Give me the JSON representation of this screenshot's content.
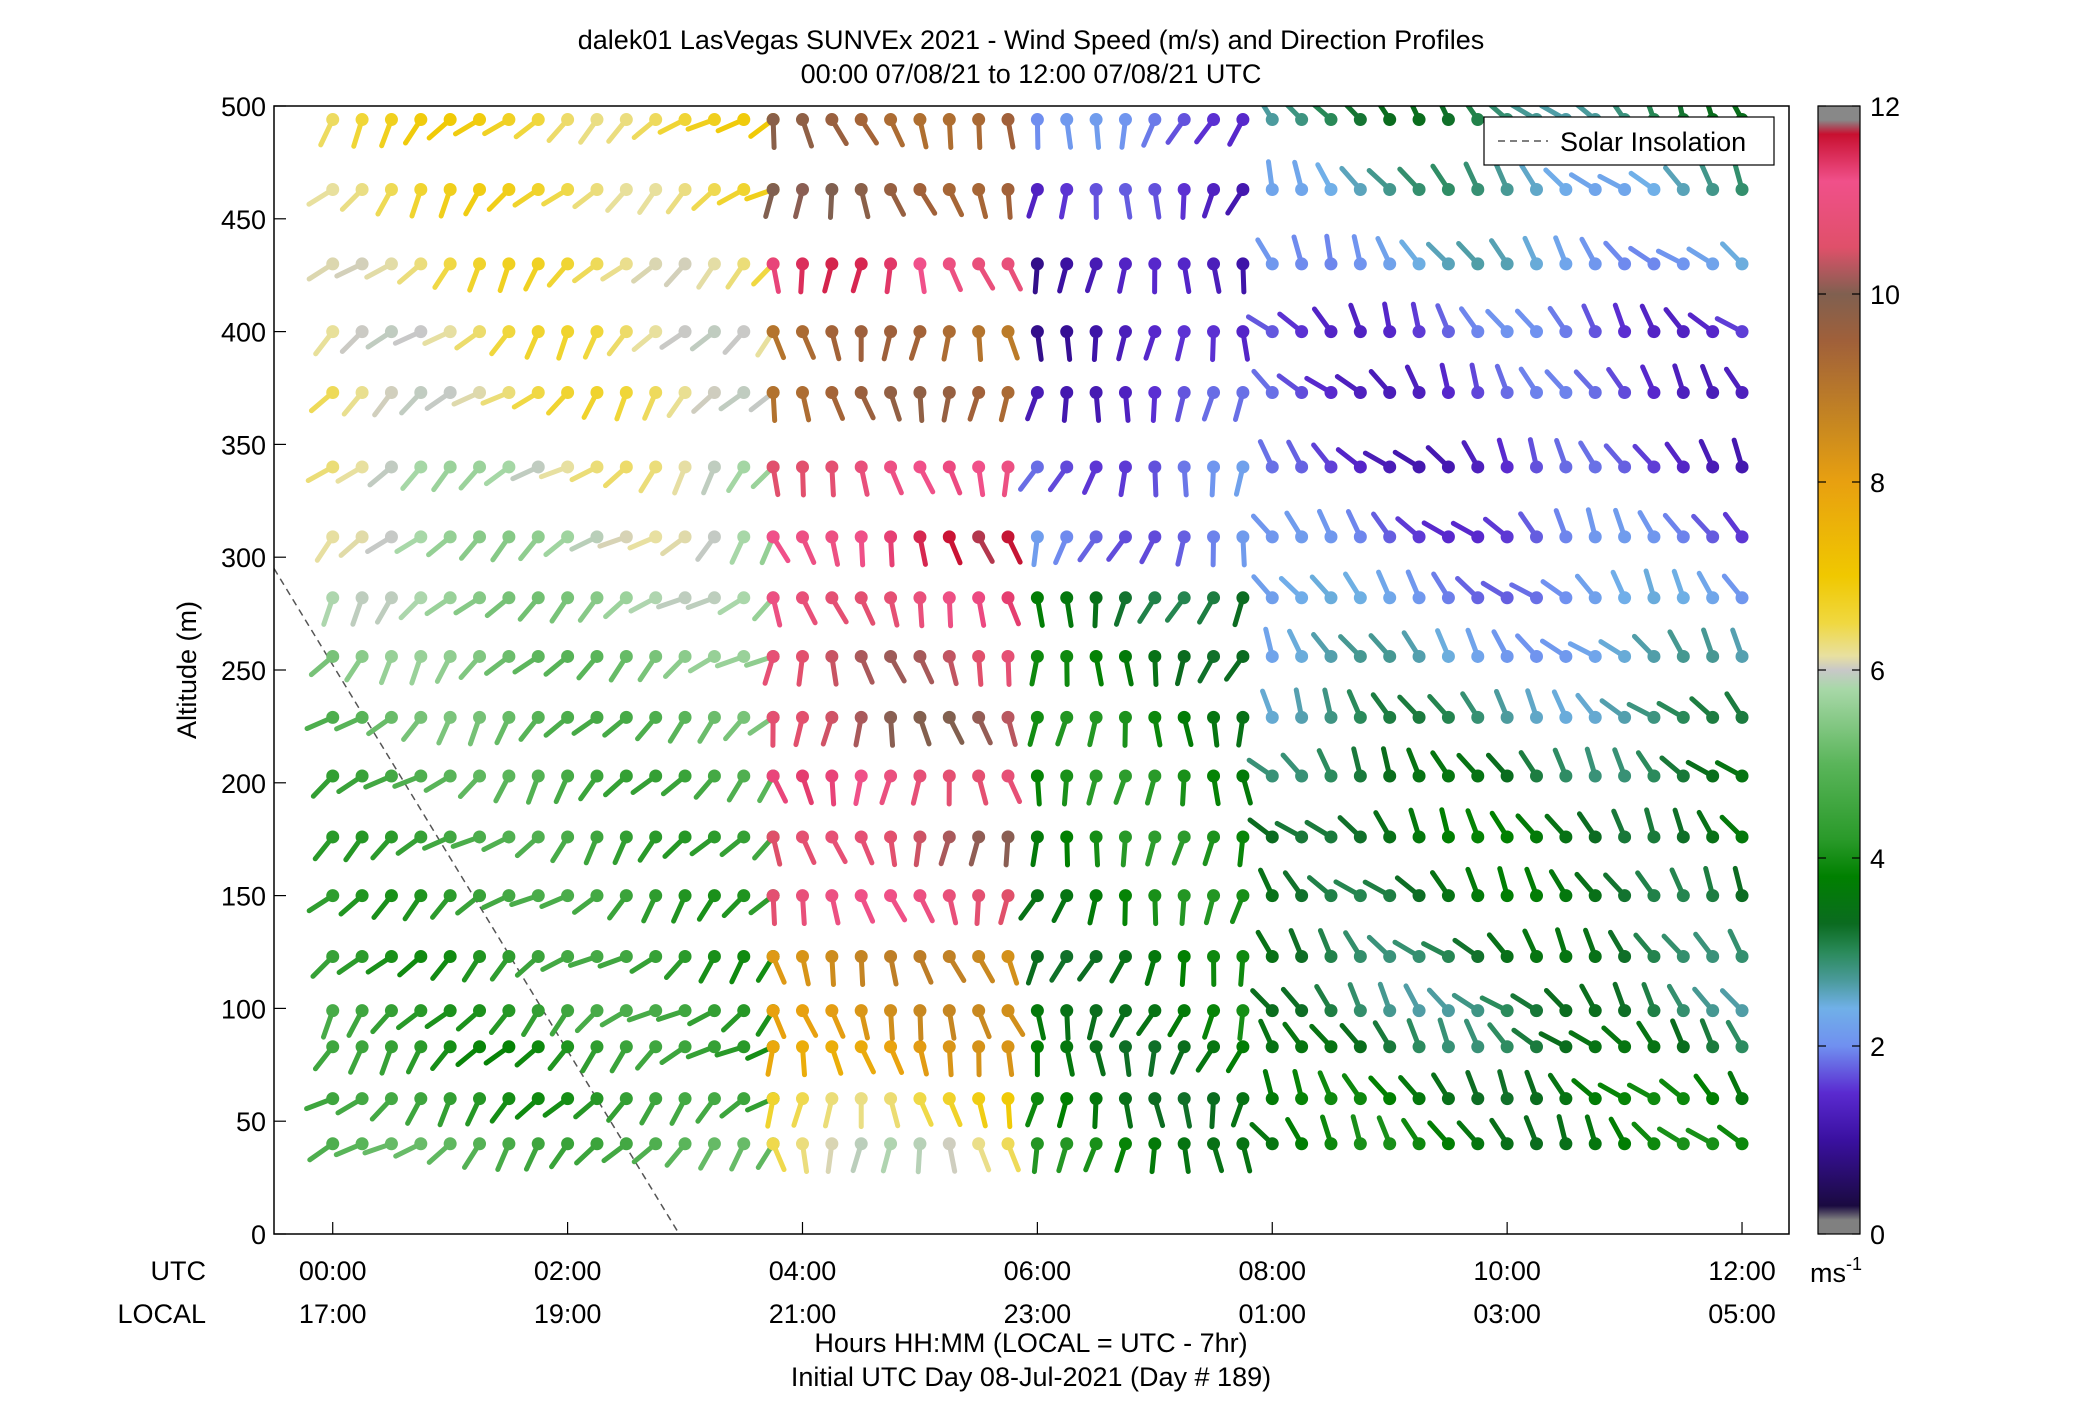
{
  "chart_data": {
    "type": "scatter",
    "title": "dalek01 LasVegas SUNVEx 2021 - Wind Speed (m/s) and Direction Profiles",
    "subtitle": "00:00 07/08/21 to 12:00 07/08/21  UTC",
    "ylabel": "Altitude (m)",
    "xlabel": "Hours HH:MM  (LOCAL = UTC - 7hr)",
    "xlabel2": "Initial UTC Day 08-Jul-2021 (Day # 189)",
    "row_label_utc": "UTC",
    "row_label_local": "LOCAL",
    "xlim": [
      -0.5,
      12.4
    ],
    "ylim": [
      0,
      500
    ],
    "yticks": [
      0,
      50,
      100,
      150,
      200,
      250,
      300,
      350,
      400,
      450,
      500
    ],
    "xticks_utc": [
      {
        "hour": 0,
        "label": "00:00"
      },
      {
        "hour": 2,
        "label": "02:00"
      },
      {
        "hour": 4,
        "label": "04:00"
      },
      {
        "hour": 6,
        "label": "06:00"
      },
      {
        "hour": 8,
        "label": "08:00"
      },
      {
        "hour": 10,
        "label": "10:00"
      },
      {
        "hour": 12,
        "label": "12:00"
      }
    ],
    "xticks_local": [
      "17:00",
      "19:00",
      "21:00",
      "23:00",
      "01:00",
      "03:00",
      "05:00"
    ],
    "legend": {
      "entry": "Solar Insolation",
      "position": "top-right"
    },
    "solar_insolation": {
      "x": [
        -0.5,
        2.95
      ],
      "y": [
        295,
        0
      ]
    },
    "colorbar": {
      "min": 0,
      "max": 12,
      "ticks": [
        0,
        2,
        4,
        6,
        8,
        10,
        12
      ],
      "unit_label": "ms",
      "unit_exponent": "-1"
    },
    "altitudes": [
      40,
      60,
      83,
      99,
      123,
      150,
      176,
      203,
      229,
      256,
      282,
      309,
      340,
      373,
      400,
      430,
      463,
      494
    ],
    "wind_barbs_note": "Each barb: dot at observation, tail pointing in wind direction; color encodes speed (m/s).",
    "segments": [
      {
        "t0": 0.0,
        "t1": 3.75,
        "step": 0.25,
        "dir": 135,
        "speed_by_alt": [
          4.8,
          4.3,
          4.2,
          4.4,
          4.3,
          4.4,
          4.5,
          4.7,
          5.0,
          5.3,
          5.6,
          5.8,
          6.0,
          6.3,
          6.3,
          6.4,
          6.5,
          6.6
        ]
      },
      {
        "t0": 3.75,
        "t1": 5.75,
        "step": 0.25,
        "dir": 80,
        "speed_by_alt": [
          6.2,
          6.6,
          8.0,
          8.3,
          8.5,
          10.8,
          10.4,
          11.0,
          10.3,
          10.5,
          11.0,
          11.4,
          10.9,
          9.4,
          9.2,
          11.2,
          9.7,
          9.5
        ]
      },
      {
        "t0": 6.0,
        "t1": 7.75,
        "step": 0.25,
        "dir": 100,
        "speed_by_alt": [
          3.8,
          3.6,
          3.6,
          3.7,
          3.6,
          3.8,
          3.9,
          3.9,
          3.8,
          3.6,
          3.4,
          2.0,
          1.9,
          1.5,
          1.2,
          1.1,
          1.4,
          1.8
        ]
      },
      {
        "t0": 8.0,
        "t1": 12.0,
        "step": 0.25,
        "dir": 235,
        "speed_by_alt": [
          3.7,
          3.6,
          3.2,
          3.0,
          3.2,
          3.4,
          3.5,
          3.2,
          2.8,
          2.4,
          2.1,
          1.8,
          1.5,
          1.6,
          1.7,
          2.3,
          2.6,
          3.0
        ]
      }
    ]
  }
}
